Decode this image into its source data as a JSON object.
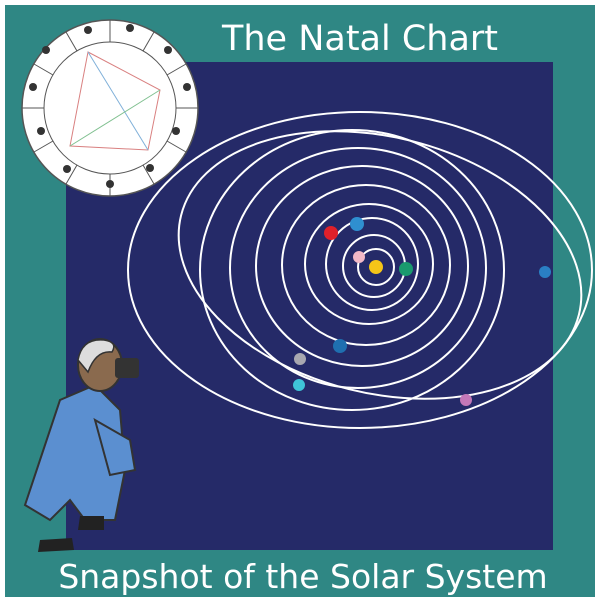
{
  "header": {
    "title": "The Natal Chart"
  },
  "footer": {
    "caption": "Snapshot of the Solar System"
  }
}
